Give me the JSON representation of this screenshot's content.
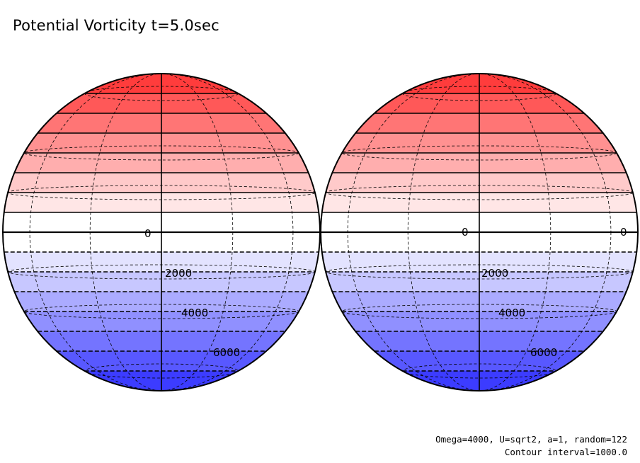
{
  "title": "Potential Vorticity t=5.0sec",
  "footer": {
    "params": "Omega=4000, U=sqrt2, a=1, random=122",
    "contour_interval": "Contour interval=1000.0"
  },
  "colors": {
    "north_fill": "#ff3c3c",
    "south_fill": "#3c3cff",
    "equator_fill": "#ffffff"
  },
  "globes": [
    {
      "name": "left-globe",
      "contour_labels": [
        "0",
        "2000",
        "4000",
        "6000"
      ]
    },
    {
      "name": "right-globe",
      "contour_labels": [
        "0",
        "0",
        "2000",
        "4000",
        "6000"
      ]
    }
  ]
}
